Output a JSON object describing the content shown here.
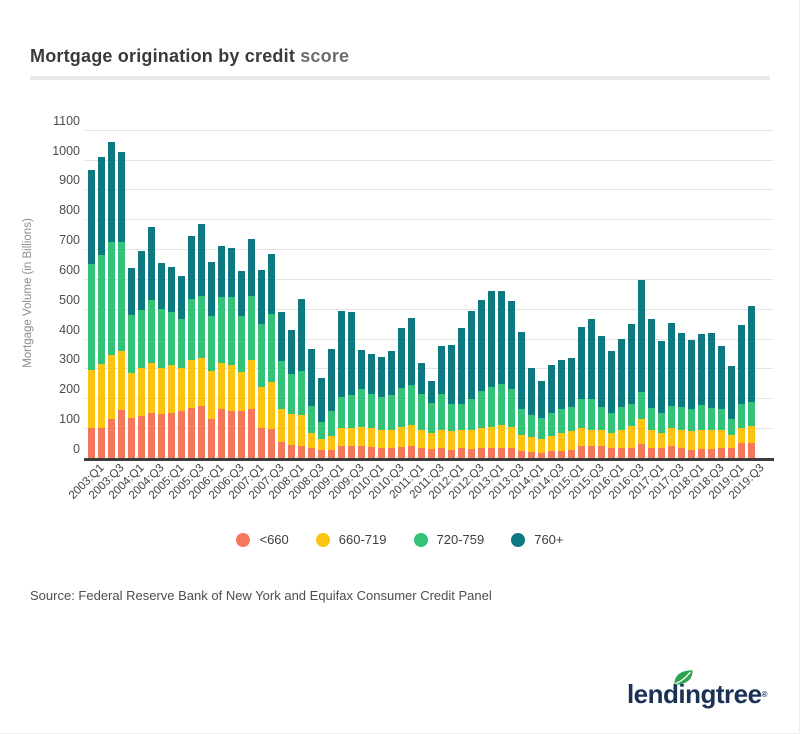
{
  "header": {
    "title_main": "Mortgage origination by credit ",
    "title_accent": "score"
  },
  "chart_data": {
    "type": "bar",
    "stacked": true,
    "title": "Mortgage origination by credit score",
    "xlabel": "",
    "ylabel": "Mortgage Volume (in Billions)",
    "ylim": [
      0,
      1100
    ],
    "ytick_step": 100,
    "grid": true,
    "legend_position": "bottom",
    "xtick_every": 2,
    "categories": [
      "2003:Q1",
      "2003:Q2",
      "2003:Q3",
      "2003:Q4",
      "2004:Q1",
      "2004:Q2",
      "2004:Q3",
      "2004:Q4",
      "2005:Q1",
      "2005:Q2",
      "2005:Q3",
      "2005:Q4",
      "2006:Q1",
      "2006:Q2",
      "2006:Q3",
      "2006:Q4",
      "2007:Q1",
      "2007:Q2",
      "2007:Q3",
      "2007:Q4",
      "2008:Q1",
      "2008:Q2",
      "2008:Q3",
      "2008:Q4",
      "2009:Q1",
      "2009:Q2",
      "2009:Q3",
      "2009:Q4",
      "2010:Q1",
      "2010:Q2",
      "2010:Q3",
      "2010:Q4",
      "2011:Q1",
      "2011:Q2",
      "2011:Q3",
      "2011:Q4",
      "2012:Q1",
      "2012:Q2",
      "2012:Q3",
      "2012:Q4",
      "2013:Q1",
      "2013:Q2",
      "2013:Q3",
      "2013:Q4",
      "2014:Q1",
      "2014:Q2",
      "2014:Q3",
      "2014:Q4",
      "2015:Q1",
      "2015:Q2",
      "2015:Q3",
      "2015:Q4",
      "2016:Q1",
      "2016:Q2",
      "2016:Q3",
      "2016:Q4",
      "2017:Q1",
      "2017:Q2",
      "2017:Q3",
      "2017:Q4",
      "2018:Q1",
      "2018:Q2",
      "2018:Q3",
      "2018:Q4",
      "2019:Q1",
      "2019:Q2",
      "2019:Q3"
    ],
    "series": [
      {
        "name": "<660",
        "color": "#F4795C",
        "values": [
          100,
          100,
          130,
          160,
          135,
          140,
          150,
          147,
          152,
          158,
          169,
          175,
          130,
          164,
          158,
          158,
          165,
          102,
          97,
          55,
          45,
          40,
          35,
          26,
          28,
          40,
          40,
          40,
          38,
          35,
          35,
          38,
          40,
          35,
          30,
          32,
          27,
          33,
          30,
          33,
          35,
          35,
          33,
          22,
          20,
          18,
          22,
          25,
          27,
          39,
          39,
          39,
          33,
          35,
          35,
          47,
          35,
          33,
          39,
          35,
          27,
          30,
          30,
          33,
          35,
          50,
          50
        ]
      },
      {
        "name": "660-719",
        "color": "#FBC412",
        "values": [
          195,
          215,
          215,
          200,
          150,
          160,
          170,
          153,
          159,
          142,
          159,
          159,
          162,
          153,
          153,
          131,
          163,
          137,
          159,
          110,
          103,
          104,
          50,
          39,
          46,
          59,
          62,
          65,
          62,
          60,
          60,
          67,
          70,
          60,
          55,
          63,
          65,
          62,
          65,
          67,
          70,
          75,
          72,
          56,
          50,
          47,
          53,
          60,
          65,
          62,
          56,
          56,
          51,
          60,
          72,
          83,
          60,
          51,
          62,
          60,
          63,
          65,
          65,
          62,
          43,
          51,
          57
        ]
      },
      {
        "name": "720-759",
        "color": "#33C277",
        "values": [
          355,
          365,
          380,
          365,
          195,
          195,
          210,
          200,
          177,
          167,
          205,
          210,
          184,
          222,
          228,
          187,
          216,
          210,
          227,
          159,
          133,
          146,
          91,
          57,
          85,
          106,
          108,
          125,
          115,
          110,
          115,
          130,
          135,
          120,
          100,
          120,
          90,
          86,
          103,
          126,
          133,
          139,
          127,
          86,
          75,
          70,
          75,
          80,
          80,
          97,
          103,
          75,
          66,
          75,
          74,
          90,
          74,
          66,
          74,
          75,
          75,
          83,
          74,
          70,
          52,
          80,
          80
        ]
      },
      {
        "name": "760+",
        "color": "#0E7981",
        "values": [
          315,
          330,
          335,
          300,
          155,
          200,
          245,
          155,
          153,
          143,
          210,
          241,
          182,
          172,
          164,
          150,
          190,
          182,
          201,
          165,
          147,
          244,
          188,
          145,
          207,
          286,
          279,
          133,
          134,
          132,
          150,
          201,
          225,
          105,
          72,
          159,
          198,
          255,
          295,
          305,
          320,
          309,
          295,
          258,
          155,
          122,
          161,
          163,
          164,
          242,
          267,
          238,
          209,
          229,
          269,
          378,
          296,
          241,
          278,
          250,
          232,
          236,
          250,
          209,
          178,
          264,
          323
        ]
      }
    ]
  },
  "footer": {
    "source": "Source: Federal Reserve Bank of New York and Equifax Consumer Credit Panel"
  },
  "logo": {
    "text": "lendingtree",
    "registered": "®"
  }
}
